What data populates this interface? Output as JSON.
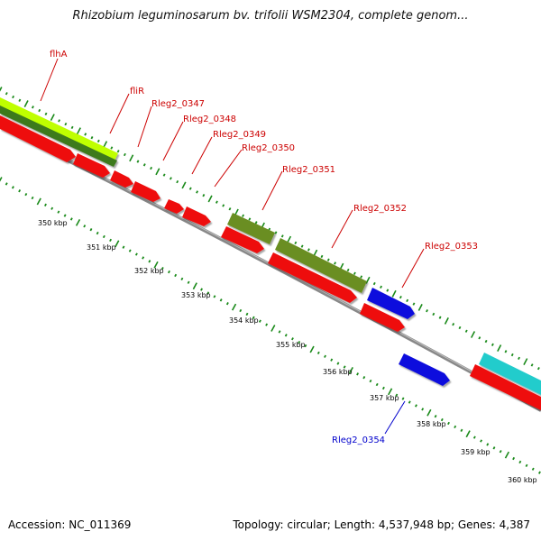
{
  "title": "Rhizobium leguminosarum bv. trifolii WSM2304, complete genom...",
  "footer": {
    "accession": "Accession: NC_011369",
    "topology": "Topology: circular; Length: 4,537,948 bp; Genes: 4,387"
  },
  "scale": {
    "ticks": [
      "350 kbp",
      "351 kbp",
      "352 kbp",
      "353 kbp",
      "354 kbp",
      "355 kbp",
      "356 kbp",
      "357 kbp",
      "358 kbp",
      "359 kbp",
      "360 kbp"
    ]
  },
  "genes": [
    {
      "label": "flhA",
      "color": "#cc0000"
    },
    {
      "label": "fliR",
      "color": "#cc0000"
    },
    {
      "label": "Rleg2_0347",
      "color": "#cc0000"
    },
    {
      "label": "Rleg2_0348",
      "color": "#cc0000"
    },
    {
      "label": "Rleg2_0349",
      "color": "#cc0000"
    },
    {
      "label": "Rleg2_0350",
      "color": "#cc0000"
    },
    {
      "label": "Rleg2_0351",
      "color": "#cc0000"
    },
    {
      "label": "Rleg2_0352",
      "color": "#cc0000"
    },
    {
      "label": "Rleg2_0353",
      "color": "#cc0000"
    },
    {
      "label": "Rleg2_0354",
      "color": "#0000cc"
    }
  ],
  "colors": {
    "backbone": "#888888",
    "cds_red": "#ee1111",
    "cds_blue": "#1111dd",
    "feature_olive": "#6b8e23",
    "feature_lime": "#bfff00",
    "feature_green": "#3d7a1f",
    "feature_cyan": "#22cccc",
    "tick_green": "#1a8a1a"
  }
}
